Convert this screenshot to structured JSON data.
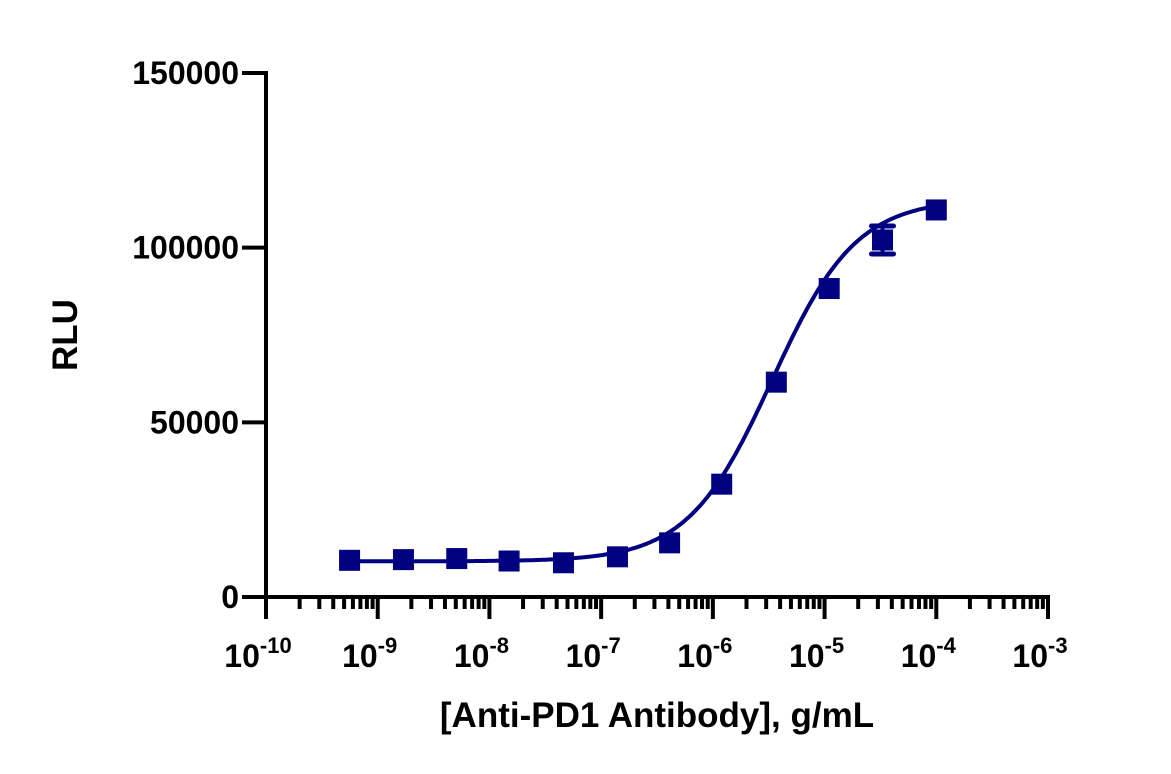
{
  "chart_data": {
    "type": "scatter",
    "title": "",
    "xlabel": "[Anti-PD1 Antibody], g/mL",
    "ylabel": "RLU",
    "xscale": "log",
    "xlim": [
      1e-10,
      0.001
    ],
    "ylim": [
      0,
      150000
    ],
    "x_ticks": [
      {
        "value": 1e-10,
        "base": "10",
        "exp": "-10"
      },
      {
        "value": 1e-09,
        "base": "10",
        "exp": "-9"
      },
      {
        "value": 1e-08,
        "base": "10",
        "exp": "-8"
      },
      {
        "value": 1e-07,
        "base": "10",
        "exp": "-7"
      },
      {
        "value": 1e-06,
        "base": "10",
        "exp": "-6"
      },
      {
        "value": 1e-05,
        "base": "10",
        "exp": "-5"
      },
      {
        "value": 0.0001,
        "base": "10",
        "exp": "-4"
      },
      {
        "value": 0.001,
        "base": "10",
        "exp": "-3"
      }
    ],
    "y_ticks": [
      {
        "value": 0,
        "label": "0"
      },
      {
        "value": 50000,
        "label": "50000"
      },
      {
        "value": 100000,
        "label": "100000"
      },
      {
        "value": 150000,
        "label": "150000"
      }
    ],
    "grid": false,
    "legend": null,
    "series": [
      {
        "name": "Anti-PD1 Antibody",
        "color": "#000080",
        "marker": "square",
        "fit": "4-parameter logistic (sigmoidal dose-response)",
        "x": [
          5.6e-10,
          1.7e-09,
          5.1e-09,
          1.5e-08,
          4.6e-08,
          1.4e-07,
          4.1e-07,
          1.2e-06,
          3.7e-06,
          1.1e-05,
          3.3e-05,
          0.0001
        ],
        "y": [
          10500,
          10700,
          11000,
          10300,
          9800,
          11500,
          15500,
          32300,
          61500,
          88300,
          102200,
          110800
        ],
        "error": [
          0,
          0,
          0,
          0,
          0,
          0,
          0,
          0,
          0,
          0,
          4000,
          0
        ]
      }
    ],
    "fit_params": {
      "bottom": 10200,
      "top": 114000,
      "logEC50": -5.47,
      "hill": 1.15
    }
  }
}
